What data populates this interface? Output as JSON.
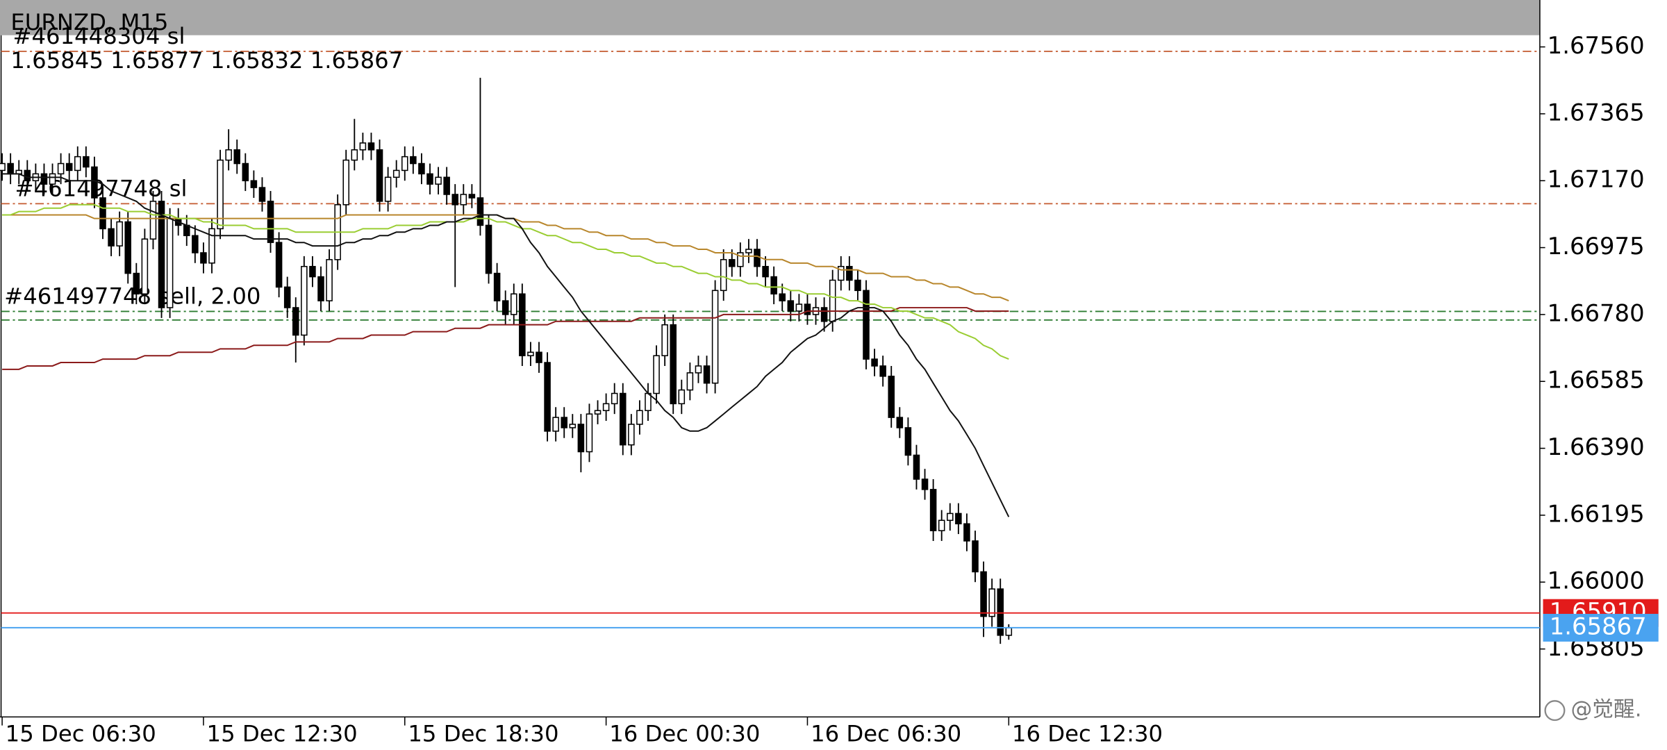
{
  "header": {
    "title": "EURNZD, M15",
    "ohlc": "1.65845 1.65877 1.65832 1.65867"
  },
  "watermark": "@觉醒.",
  "chart_data": {
    "type": "candlestick",
    "categories": [
      "15 Dec 06:30",
      null,
      null,
      null,
      null,
      null,
      null,
      null,
      null,
      null,
      null,
      null,
      null,
      null,
      null,
      null,
      null,
      null,
      null,
      null,
      null,
      null,
      null,
      null,
      "15 Dec 12:30",
      null,
      null,
      null,
      null,
      null,
      null,
      null,
      null,
      null,
      null,
      null,
      null,
      null,
      null,
      null,
      null,
      null,
      null,
      null,
      null,
      null,
      null,
      null,
      "15 Dec 18:30",
      null,
      null,
      null,
      null,
      null,
      null,
      null,
      null,
      null,
      null,
      null,
      null,
      null,
      null,
      null,
      null,
      null,
      null,
      null,
      null,
      null,
      null,
      null,
      "16 Dec 00:30",
      null,
      null,
      null,
      null,
      null,
      null,
      null,
      null,
      null,
      null,
      null,
      null,
      null,
      null,
      null,
      null,
      null,
      null,
      null,
      null,
      null,
      null,
      null,
      "16 Dec 06:30",
      null,
      null,
      null,
      null,
      null,
      null,
      null,
      null,
      null,
      null,
      null,
      null,
      null,
      null,
      null,
      null,
      null,
      null,
      null,
      null,
      null,
      null,
      null,
      "16 Dec 12:30"
    ],
    "open": [
      1.672,
      1.6722,
      1.6719,
      1.672,
      1.6717,
      1.6719,
      1.6716,
      1.6719,
      1.6722,
      1.672,
      1.6724,
      1.6721,
      1.6712,
      1.6703,
      1.6698,
      1.6705,
      1.669,
      1.6684,
      1.67,
      1.6711,
      1.668,
      1.6706,
      1.6704,
      1.6701,
      1.6696,
      1.6693,
      1.6703,
      1.6723,
      1.6726,
      1.6722,
      1.6717,
      1.6715,
      1.6711,
      1.6699,
      1.6686,
      1.668,
      1.6672,
      1.6692,
      1.6689,
      1.6682,
      1.6694,
      1.671,
      1.6723,
      1.6726,
      1.6728,
      1.6726,
      1.6711,
      1.6718,
      1.672,
      1.6724,
      1.6722,
      1.6719,
      1.6716,
      1.6718,
      1.6713,
      1.671,
      1.6713,
      1.6712,
      1.6704,
      1.669,
      1.6682,
      1.6678,
      1.6684,
      1.6666,
      1.6667,
      1.6664,
      1.6644,
      1.6648,
      1.6645,
      1.6646,
      1.6638,
      1.6649,
      1.665,
      1.6652,
      1.6655,
      1.664,
      1.6646,
      1.665,
      1.6655,
      1.6666,
      1.6675,
      1.6652,
      1.6656,
      1.6661,
      1.6663,
      1.6658,
      1.6685,
      1.6694,
      1.6692,
      1.6696,
      1.6697,
      1.6692,
      1.6689,
      1.6684,
      1.6682,
      1.6679,
      1.6681,
      1.6678,
      1.668,
      1.6676,
      1.6688,
      1.6692,
      1.6688,
      1.6685,
      1.6665,
      1.6663,
      1.666,
      1.6648,
      1.6645,
      1.6637,
      1.663,
      1.6627,
      1.6615,
      1.6618,
      1.662,
      1.6617,
      1.6612,
      1.6603,
      1.659,
      1.6598,
      1.65845
    ],
    "high": [
      1.6725,
      1.6725,
      1.6723,
      1.6723,
      1.6722,
      1.6722,
      1.6722,
      1.6725,
      1.6725,
      1.6727,
      1.6727,
      1.6724,
      1.6715,
      1.6706,
      1.6708,
      1.6708,
      1.6693,
      1.6703,
      1.6714,
      1.6714,
      1.6709,
      1.6709,
      1.6707,
      1.6704,
      1.6699,
      1.6706,
      1.6726,
      1.6732,
      1.6729,
      1.6725,
      1.672,
      1.6718,
      1.6714,
      1.6702,
      1.6689,
      1.6683,
      1.6695,
      1.6695,
      1.6692,
      1.6697,
      1.6713,
      1.6726,
      1.6735,
      1.6731,
      1.6731,
      1.6729,
      1.6721,
      1.6723,
      1.6727,
      1.6727,
      1.6725,
      1.6722,
      1.6721,
      1.6721,
      1.6716,
      1.6716,
      1.6716,
      1.6747,
      1.6707,
      1.6693,
      1.6685,
      1.6687,
      1.6687,
      1.667,
      1.667,
      1.6667,
      1.6651,
      1.6651,
      1.6649,
      1.6649,
      1.6652,
      1.6653,
      1.6655,
      1.6658,
      1.6658,
      1.6649,
      1.6653,
      1.6658,
      1.6669,
      1.6678,
      1.6678,
      1.6659,
      1.6664,
      1.6666,
      1.6666,
      1.6688,
      1.6697,
      1.6697,
      1.6699,
      1.67,
      1.67,
      1.6695,
      1.6692,
      1.6687,
      1.6685,
      1.6684,
      1.6684,
      1.6683,
      1.6683,
      1.6691,
      1.6695,
      1.6695,
      1.6691,
      1.6688,
      1.6668,
      1.6666,
      1.6663,
      1.6651,
      1.6648,
      1.664,
      1.6633,
      1.663,
      1.6621,
      1.6623,
      1.6623,
      1.662,
      1.6615,
      1.6606,
      1.6601,
      1.6601,
      1.65877
    ],
    "low": [
      1.6717,
      1.6716,
      1.6716,
      1.6714,
      1.6714,
      1.6713,
      1.6713,
      1.6716,
      1.6717,
      1.6717,
      1.6718,
      1.6709,
      1.67,
      1.6695,
      1.6695,
      1.6687,
      1.6681,
      1.6681,
      1.6697,
      1.6677,
      1.6677,
      1.6701,
      1.6698,
      1.6693,
      1.669,
      1.669,
      1.67,
      1.672,
      1.6719,
      1.6714,
      1.6712,
      1.6708,
      1.6696,
      1.6683,
      1.6677,
      1.6664,
      1.6669,
      1.6686,
      1.6679,
      1.6679,
      1.6691,
      1.6707,
      1.672,
      1.6723,
      1.6723,
      1.6708,
      1.6708,
      1.6715,
      1.6717,
      1.6719,
      1.6716,
      1.6713,
      1.6713,
      1.671,
      1.6686,
      1.6707,
      1.6709,
      1.6701,
      1.6687,
      1.6679,
      1.6675,
      1.6675,
      1.6663,
      1.6663,
      1.6661,
      1.6641,
      1.6641,
      1.6642,
      1.6642,
      1.6632,
      1.6635,
      1.6646,
      1.6647,
      1.6649,
      1.6637,
      1.6637,
      1.6643,
      1.6647,
      1.6652,
      1.6663,
      1.6649,
      1.6649,
      1.6653,
      1.6658,
      1.6655,
      1.6655,
      1.6682,
      1.6689,
      1.6689,
      1.6693,
      1.6689,
      1.6686,
      1.6681,
      1.6679,
      1.6676,
      1.6676,
      1.6675,
      1.6675,
      1.6673,
      1.6673,
      1.6685,
      1.6685,
      1.6682,
      1.6662,
      1.666,
      1.6657,
      1.6645,
      1.6642,
      1.6634,
      1.6627,
      1.6624,
      1.6612,
      1.6612,
      1.6615,
      1.6614,
      1.6609,
      1.66,
      1.6584,
      1.6587,
      1.6582,
      1.65832
    ],
    "close": [
      1.6722,
      1.6719,
      1.672,
      1.6717,
      1.6719,
      1.6716,
      1.6719,
      1.6722,
      1.672,
      1.6724,
      1.6721,
      1.6712,
      1.6703,
      1.6698,
      1.6705,
      1.669,
      1.6684,
      1.67,
      1.6711,
      1.668,
      1.6706,
      1.6704,
      1.6701,
      1.6696,
      1.6693,
      1.6703,
      1.6723,
      1.6726,
      1.6722,
      1.6717,
      1.6715,
      1.6711,
      1.6699,
      1.6686,
      1.668,
      1.6672,
      1.6692,
      1.6689,
      1.6682,
      1.6694,
      1.671,
      1.6723,
      1.6726,
      1.6728,
      1.6726,
      1.6711,
      1.6718,
      1.672,
      1.6724,
      1.6722,
      1.6719,
      1.6716,
      1.6718,
      1.6713,
      1.671,
      1.6713,
      1.6712,
      1.6704,
      1.669,
      1.6682,
      1.6678,
      1.6684,
      1.6666,
      1.6667,
      1.6664,
      1.6644,
      1.6648,
      1.6645,
      1.6646,
      1.6638,
      1.6649,
      1.665,
      1.6652,
      1.6655,
      1.664,
      1.6646,
      1.665,
      1.6655,
      1.6666,
      1.6675,
      1.6652,
      1.6656,
      1.6661,
      1.6663,
      1.6658,
      1.6685,
      1.6694,
      1.6692,
      1.6696,
      1.6697,
      1.6692,
      1.6689,
      1.6684,
      1.6682,
      1.6679,
      1.6681,
      1.6678,
      1.668,
      1.6676,
      1.6688,
      1.6692,
      1.6688,
      1.6685,
      1.6665,
      1.6663,
      1.666,
      1.6648,
      1.6645,
      1.6637,
      1.663,
      1.6627,
      1.6615,
      1.6618,
      1.662,
      1.6617,
      1.6612,
      1.6603,
      1.659,
      1.6598,
      1.65845,
      1.65867
    ],
    "up_color": "#ffffff",
    "down_color": "#000000",
    "lines": [
      {
        "color": "#8b1a1a",
        "values": [
          1.6662,
          1.6662,
          1.6662,
          1.6663,
          1.6663,
          1.6663,
          1.6663,
          1.6664,
          1.6664,
          1.6664,
          1.6664,
          1.6664,
          1.6665,
          1.6665,
          1.6665,
          1.6665,
          1.6665,
          1.6666,
          1.6666,
          1.6666,
          1.6666,
          1.6667,
          1.6667,
          1.6667,
          1.6667,
          1.6667,
          1.6668,
          1.6668,
          1.6668,
          1.6668,
          1.6669,
          1.6669,
          1.6669,
          1.6669,
          1.6669,
          1.667,
          1.667,
          1.667,
          1.667,
          1.667,
          1.6671,
          1.6671,
          1.6671,
          1.6671,
          1.6672,
          1.6672,
          1.6672,
          1.6672,
          1.6672,
          1.6673,
          1.6673,
          1.6673,
          1.6673,
          1.6673,
          1.6674,
          1.6674,
          1.6674,
          1.6674,
          1.6675,
          1.6675,
          1.6675,
          1.6675,
          1.6675,
          1.6675,
          1.6675,
          1.6675,
          1.6676,
          1.6676,
          1.6676,
          1.6676,
          1.6676,
          1.6676,
          1.6676,
          1.6676,
          1.6676,
          1.6676,
          1.6677,
          1.6677,
          1.6677,
          1.6677,
          1.6677,
          1.6677,
          1.6677,
          1.6677,
          1.6677,
          1.6677,
          1.6678,
          1.6678,
          1.6678,
          1.6678,
          1.6678,
          1.6678,
          1.6678,
          1.6678,
          1.6678,
          1.6678,
          1.6679,
          1.6679,
          1.6679,
          1.6679,
          1.6679,
          1.6679,
          1.6679,
          1.6679,
          1.6679,
          1.6679,
          1.6679,
          1.668,
          1.668,
          1.668,
          1.668,
          1.668,
          1.668,
          1.668,
          1.668,
          1.668,
          1.6679,
          1.6679,
          1.6679,
          1.6679,
          1.6679
        ]
      },
      {
        "color": "#b8862b",
        "values": [
          1.6707,
          1.6707,
          1.6707,
          1.6707,
          1.6707,
          1.6707,
          1.6707,
          1.6707,
          1.6707,
          1.6707,
          1.6707,
          1.6706,
          1.6706,
          1.6706,
          1.6706,
          1.6706,
          1.6706,
          1.6706,
          1.6706,
          1.6706,
          1.6706,
          1.6706,
          1.6706,
          1.6706,
          1.6706,
          1.6706,
          1.6706,
          1.6706,
          1.6706,
          1.6706,
          1.6706,
          1.6706,
          1.6706,
          1.6706,
          1.6706,
          1.6706,
          1.6706,
          1.6706,
          1.6706,
          1.6706,
          1.6706,
          1.6707,
          1.6707,
          1.6707,
          1.6707,
          1.6707,
          1.6707,
          1.6707,
          1.6707,
          1.6707,
          1.6707,
          1.6707,
          1.6707,
          1.6707,
          1.6707,
          1.6707,
          1.6707,
          1.6707,
          1.6707,
          1.6707,
          1.6706,
          1.6706,
          1.6705,
          1.6705,
          1.6705,
          1.6704,
          1.6704,
          1.6703,
          1.6703,
          1.6703,
          1.6702,
          1.6702,
          1.6701,
          1.6701,
          1.6701,
          1.67,
          1.67,
          1.67,
          1.6699,
          1.6699,
          1.6698,
          1.6698,
          1.6698,
          1.6697,
          1.6697,
          1.6696,
          1.6696,
          1.6696,
          1.6695,
          1.6695,
          1.6695,
          1.6694,
          1.6694,
          1.6694,
          1.6693,
          1.6693,
          1.6693,
          1.6692,
          1.6692,
          1.6692,
          1.6691,
          1.6691,
          1.6691,
          1.669,
          1.669,
          1.669,
          1.6689,
          1.6689,
          1.6689,
          1.6688,
          1.6688,
          1.6687,
          1.6687,
          1.6686,
          1.6686,
          1.6685,
          1.6684,
          1.6684,
          1.6683,
          1.6683,
          1.6682
        ]
      },
      {
        "color": "#9acd32",
        "values": [
          1.6707,
          1.6707,
          1.6708,
          1.6708,
          1.6708,
          1.6709,
          1.6709,
          1.6709,
          1.671,
          1.671,
          1.671,
          1.671,
          1.6709,
          1.6709,
          1.6709,
          1.6708,
          1.6708,
          1.6708,
          1.6707,
          1.6707,
          1.6707,
          1.6706,
          1.6706,
          1.6706,
          1.6705,
          1.6705,
          1.6704,
          1.6704,
          1.6704,
          1.6704,
          1.6703,
          1.6703,
          1.6703,
          1.6703,
          1.6703,
          1.6702,
          1.6702,
          1.6702,
          1.6702,
          1.6702,
          1.6702,
          1.6702,
          1.6702,
          1.6703,
          1.6703,
          1.6703,
          1.6703,
          1.6704,
          1.6704,
          1.6704,
          1.6704,
          1.6705,
          1.6705,
          1.6705,
          1.6705,
          1.6705,
          1.6706,
          1.6706,
          1.6706,
          1.6705,
          1.6705,
          1.6704,
          1.6703,
          1.6703,
          1.6702,
          1.6701,
          1.6701,
          1.67,
          1.6699,
          1.6699,
          1.6698,
          1.6697,
          1.6697,
          1.6696,
          1.6696,
          1.6695,
          1.6695,
          1.6694,
          1.6693,
          1.6693,
          1.6692,
          1.6692,
          1.6691,
          1.669,
          1.669,
          1.6689,
          1.6689,
          1.6688,
          1.6688,
          1.6687,
          1.6687,
          1.6686,
          1.6686,
          1.6686,
          1.6685,
          1.6685,
          1.6684,
          1.6684,
          1.6684,
          1.6683,
          1.6683,
          1.6682,
          1.6682,
          1.6681,
          1.6681,
          1.668,
          1.668,
          1.6679,
          1.6679,
          1.6678,
          1.6677,
          1.6677,
          1.6676,
          1.6675,
          1.6673,
          1.6672,
          1.6671,
          1.6669,
          1.6668,
          1.6666,
          1.6665
        ]
      },
      {
        "color": "#111111",
        "values": [
          1.6719,
          1.6719,
          1.6719,
          1.6718,
          1.6718,
          1.6718,
          1.6718,
          1.6718,
          1.6717,
          1.6717,
          1.6717,
          1.6717,
          1.6716,
          1.6714,
          1.6713,
          1.6712,
          1.6711,
          1.6709,
          1.6708,
          1.6707,
          1.6706,
          1.6705,
          1.6704,
          1.6703,
          1.6702,
          1.6701,
          1.6701,
          1.6701,
          1.6701,
          1.6701,
          1.67,
          1.67,
          1.67,
          1.67,
          1.67,
          1.6699,
          1.6699,
          1.6698,
          1.6698,
          1.6698,
          1.6698,
          1.6699,
          1.6699,
          1.67,
          1.67,
          1.6701,
          1.6701,
          1.6702,
          1.6702,
          1.6703,
          1.6703,
          1.6704,
          1.6704,
          1.6705,
          1.6705,
          1.6706,
          1.6706,
          1.6707,
          1.6707,
          1.6707,
          1.6706,
          1.6706,
          1.6703,
          1.6699,
          1.6696,
          1.6692,
          1.6689,
          1.6686,
          1.6683,
          1.6679,
          1.6676,
          1.6673,
          1.667,
          1.6667,
          1.6664,
          1.6661,
          1.6658,
          1.6655,
          1.6653,
          1.665,
          1.6648,
          1.6645,
          1.6644,
          1.6644,
          1.6645,
          1.6647,
          1.6649,
          1.6651,
          1.6653,
          1.6655,
          1.6657,
          1.666,
          1.6662,
          1.6664,
          1.6667,
          1.6669,
          1.6671,
          1.6672,
          1.6674,
          1.6676,
          1.6677,
          1.6679,
          1.668,
          1.668,
          1.668,
          1.6679,
          1.6676,
          1.6672,
          1.6669,
          1.6665,
          1.6662,
          1.6658,
          1.6654,
          1.665,
          1.6647,
          1.6643,
          1.6639,
          1.6634,
          1.6629,
          1.6624,
          1.6619
        ]
      }
    ],
    "levels": [
      {
        "label": "#461448304 sl",
        "value": 1.67547,
        "color": "#c8643c"
      },
      {
        "label": "#461497748 sl",
        "value": 1.67103,
        "color": "#c8643c"
      },
      {
        "label": "#461497748 sell, 2.00",
        "value": 1.66789,
        "color": "#2e7d32"
      },
      {
        "value": 1.66764,
        "color": "#2e7d32"
      }
    ],
    "price_lines": [
      {
        "value": 1.6591,
        "label": "1.65910",
        "color": "#e31b1b"
      },
      {
        "value": 1.65867,
        "color": "#4aa3f0"
      }
    ],
    "ylim": [
      1.65607,
      1.67591
    ],
    "yticks": [
      {
        "value": 1.6756,
        "label": "1.67560"
      },
      1.67365,
      {
        "value": 1.6717,
        "label": "1.67170"
      },
      1.66975,
      {
        "value": 1.6678,
        "label": "1.66780"
      },
      1.66585,
      {
        "value": 1.6639,
        "label": "1.66390"
      },
      1.66195,
      {
        "value": 1.66,
        "label": "1.66000"
      },
      1.65805
    ]
  }
}
